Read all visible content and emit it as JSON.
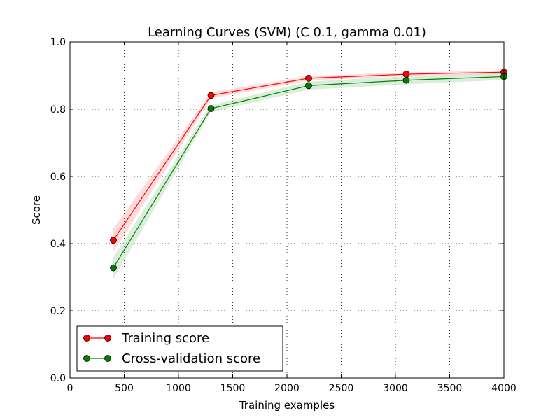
{
  "chart_data": {
    "type": "line",
    "title": "Learning Curves (SVM) (C 0.1, gamma 0.01)",
    "xlabel": "Training examples",
    "ylabel": "Score",
    "xlim": [
      0,
      4000
    ],
    "ylim": [
      0.0,
      1.0
    ],
    "xticks": [
      "0",
      "500",
      "1000",
      "1500",
      "2000",
      "2500",
      "3000",
      "3500",
      "4000"
    ],
    "yticks": [
      "0.0",
      "0.2",
      "0.4",
      "0.6",
      "0.8",
      "1.0"
    ],
    "grid": true,
    "legend_position": "lower-left",
    "x": [
      400,
      1300,
      2200,
      3100,
      4000
    ],
    "series": [
      {
        "name": "Training score",
        "color": "#ff0000",
        "band_color": "#ff9999",
        "values": [
          0.41,
          0.841,
          0.892,
          0.904,
          0.91
        ],
        "lower": [
          0.375,
          0.832,
          0.885,
          0.899,
          0.905
        ],
        "upper": [
          0.445,
          0.85,
          0.899,
          0.909,
          0.915
        ]
      },
      {
        "name": "Cross-validation score",
        "color": "#008000",
        "band_color": "#99cc99",
        "values": [
          0.328,
          0.802,
          0.87,
          0.886,
          0.897
        ],
        "lower": [
          0.295,
          0.792,
          0.858,
          0.874,
          0.887
        ],
        "upper": [
          0.36,
          0.812,
          0.882,
          0.898,
          0.907
        ]
      }
    ]
  }
}
